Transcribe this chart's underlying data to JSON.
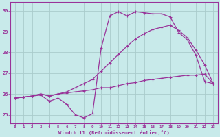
{
  "xlabel": "Windchill (Refroidissement éolien,°C)",
  "bg_color": "#c8eaea",
  "grid_color": "#aacccc",
  "line_color": "#993399",
  "xlim": [
    -0.5,
    23.5
  ],
  "ylim": [
    24.6,
    30.4
  ],
  "yticks": [
    25,
    26,
    27,
    28,
    29,
    30
  ],
  "xticks": [
    0,
    1,
    2,
    3,
    4,
    5,
    6,
    7,
    8,
    9,
    10,
    11,
    12,
    13,
    14,
    15,
    16,
    17,
    18,
    19,
    20,
    21,
    22,
    23
  ],
  "series1_x": [
    0,
    1,
    2,
    3,
    4,
    5,
    6,
    7,
    8,
    9,
    10,
    11,
    12,
    13,
    14,
    15,
    16,
    17,
    18,
    19,
    20,
    21,
    22,
    23
  ],
  "series1": [
    25.8,
    25.85,
    25.9,
    25.95,
    25.65,
    25.8,
    25.5,
    25.0,
    24.85,
    25.05,
    28.2,
    29.75,
    29.95,
    29.75,
    29.95,
    29.9,
    29.85,
    29.85,
    29.7,
    28.95,
    28.6,
    27.85,
    26.6,
    26.5
  ],
  "series2_x": [
    0,
    1,
    2,
    3,
    4,
    5,
    6,
    7,
    8,
    9,
    10,
    11,
    12,
    13,
    14,
    15,
    16,
    17,
    18,
    19,
    20,
    21,
    22,
    23
  ],
  "series2": [
    25.8,
    25.85,
    25.9,
    26.0,
    25.9,
    26.0,
    26.05,
    26.1,
    26.15,
    26.2,
    26.3,
    26.3,
    26.4,
    26.5,
    26.55,
    26.65,
    26.7,
    26.75,
    26.8,
    26.85,
    26.9,
    26.9,
    26.95,
    26.5
  ],
  "series3_x": [
    0,
    1,
    2,
    3,
    4,
    5,
    6,
    7,
    8,
    9,
    10,
    11,
    12,
    13,
    14,
    15,
    16,
    17,
    18,
    19,
    20,
    21,
    22,
    23
  ],
  "series3": [
    25.8,
    25.85,
    25.9,
    26.0,
    25.9,
    26.0,
    26.1,
    26.3,
    26.5,
    26.7,
    27.1,
    27.5,
    27.9,
    28.3,
    28.65,
    28.9,
    29.1,
    29.2,
    29.3,
    29.05,
    28.7,
    28.1,
    27.4,
    26.5
  ]
}
